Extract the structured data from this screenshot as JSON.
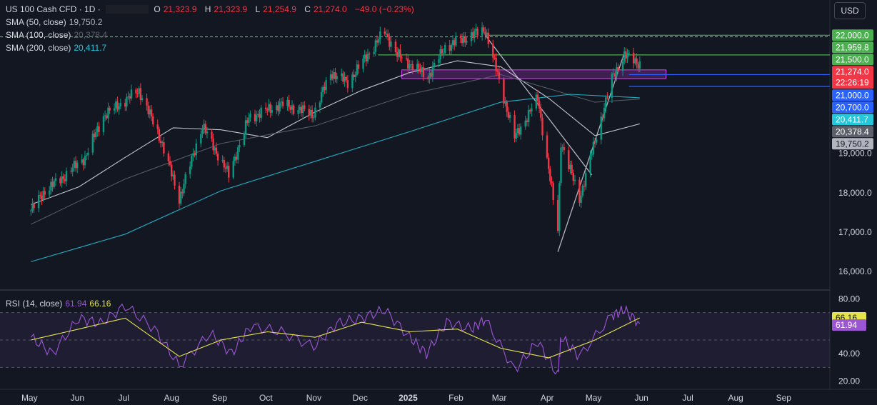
{
  "header": {
    "symbol": "US 100 Cash CFD · 1D ·",
    "ohlc": {
      "o_label": "O",
      "o": "21,323.9",
      "h_label": "H",
      "h": "21,323.9",
      "l_label": "L",
      "l": "21,254.9",
      "c_label": "C",
      "c": "21,274.0",
      "chg": "−49.0 (−0.23%)"
    },
    "currency_button": "USD"
  },
  "indicators": [
    {
      "label": "SMA (50, close)",
      "value": "19,750.2",
      "color": "#ffffff"
    },
    {
      "label": "SMA (100, close)",
      "value": "20,378.4",
      "color": "#5d606b"
    },
    {
      "label": "SMA (200, close)",
      "value": "20,411.7",
      "color": "#26c6da"
    }
  ],
  "rsi_legend": {
    "label": "RSI (14, close)",
    "rsi": "61.94",
    "ma": "66.16"
  },
  "colors": {
    "bg": "#131722",
    "up": "#089981",
    "down": "#f23645",
    "sma50": "#e0e3eb",
    "sma100": "#5d606b",
    "sma200": "#26c6da",
    "rsi": "#9c56d4",
    "rsi_ma": "#e5e34a",
    "grid": "#2a2e39"
  },
  "chart_data": [
    {
      "type": "candlestick",
      "title": "US 100 Cash CFD · 1D",
      "x_labels": [
        "May",
        "Jun",
        "Jul",
        "Aug",
        "Sep",
        "Oct",
        "Nov",
        "Dec",
        "2025",
        "Feb",
        "Mar",
        "Apr",
        "May",
        "Jun",
        "Jul",
        "Aug",
        "Sep"
      ],
      "y_ticks": [
        "16,000.0",
        "17,000.0",
        "18,000.0",
        "19,000.0"
      ],
      "ylim": [
        15550,
        22350
      ],
      "grid": false,
      "path_points": [
        [
          "2024-05-01",
          17550
        ],
        [
          "2024-05-10",
          18050
        ],
        [
          "2024-05-22",
          18400
        ],
        [
          "2024-06-05",
          18900
        ],
        [
          "2024-06-17",
          19950
        ],
        [
          "2024-07-10",
          20600
        ],
        [
          "2024-07-24",
          19350
        ],
        [
          "2024-08-05",
          17850
        ],
        [
          "2024-08-20",
          19700
        ],
        [
          "2024-09-06",
          18450
        ],
        [
          "2024-09-19",
          19900
        ],
        [
          "2024-10-10",
          20250
        ],
        [
          "2024-10-31",
          20000
        ],
        [
          "2024-11-11",
          21050
        ],
        [
          "2024-11-22",
          20800
        ],
        [
          "2024-12-16",
          22100
        ],
        [
          "2024-12-24",
          21500
        ],
        [
          "2025-01-13",
          20950
        ],
        [
          "2025-01-24",
          21700
        ],
        [
          "2025-02-19",
          22150
        ],
        [
          "2025-03-10",
          19400
        ],
        [
          "2025-03-25",
          20400
        ],
        [
          "2025-04-07",
          17050
        ],
        [
          "2025-04-09",
          19300
        ],
        [
          "2025-04-21",
          17850
        ],
        [
          "2025-05-12",
          20900
        ],
        [
          "2025-05-20",
          21500
        ],
        [
          "2025-05-30",
          21274
        ]
      ],
      "moving_averages": [
        {
          "name": "SMA (50, close)",
          "points": [
            [
              "2024-05-01",
              17700
            ],
            [
              "2024-06-01",
              18150
            ],
            [
              "2024-07-01",
              18900
            ],
            [
              "2024-08-01",
              19650
            ],
            [
              "2024-09-01",
              19600
            ],
            [
              "2024-10-01",
              19400
            ],
            [
              "2024-11-01",
              20050
            ],
            [
              "2024-12-01",
              20600
            ],
            [
              "2025-01-01",
              21050
            ],
            [
              "2025-02-01",
              21350
            ],
            [
              "2025-03-01",
              21200
            ],
            [
              "2025-04-01",
              20400
            ],
            [
              "2025-05-01",
              19450
            ],
            [
              "2025-05-30",
              19750.2
            ]
          ]
        },
        {
          "name": "SMA (100, close)",
          "points": [
            [
              "2024-05-01",
              17200
            ],
            [
              "2024-07-01",
              18350
            ],
            [
              "2024-09-01",
              19250
            ],
            [
              "2024-11-01",
              19700
            ],
            [
              "2025-01-01",
              20500
            ],
            [
              "2025-03-01",
              21000
            ],
            [
              "2025-05-01",
              20300
            ],
            [
              "2025-05-30",
              20378.4
            ]
          ]
        },
        {
          "name": "SMA (200, close)",
          "points": [
            [
              "2024-05-01",
              16250
            ],
            [
              "2024-07-01",
              16950
            ],
            [
              "2024-09-01",
              18050
            ],
            [
              "2024-11-01",
              18800
            ],
            [
              "2025-01-01",
              19550
            ],
            [
              "2025-03-01",
              20300
            ],
            [
              "2025-04-15",
              20500
            ],
            [
              "2025-05-30",
              20411.7
            ]
          ]
        }
      ],
      "horizontal_levels": [
        {
          "price": 22000.0,
          "label": "22,000.0",
          "color": "#4caf50"
        },
        {
          "price": 21959.8,
          "label": "21,959.8",
          "color": "#4caf50"
        },
        {
          "price": 21500.0,
          "label": "21,500.0",
          "color": "#4caf50"
        },
        {
          "price": 21000.0,
          "label": "21,000.0",
          "color": "#2962ff"
        },
        {
          "price": 20700.0,
          "label": "20,700.0",
          "color": "#2962ff"
        }
      ],
      "price_labels": [
        {
          "price": 21274.0,
          "label": "21,274.0",
          "sub": "22:26:19",
          "color": "#f23645"
        },
        {
          "price": 20411.7,
          "label": "20,411.7",
          "color": "#26c6da"
        },
        {
          "price": 20378.4,
          "label": "20,378.4",
          "color": "#5d606b"
        },
        {
          "price": 19750.2,
          "label": "19,750.2",
          "color": "#b2b5be"
        }
      ],
      "zones": [
        {
          "from": 20900,
          "to": 21120,
          "color": "#e040fb"
        }
      ],
      "trendlines": [
        {
          "from": [
            "2025-02-19",
            22000
          ],
          "to": [
            "2025-04-29",
            18450
          ]
        },
        {
          "from": [
            "2025-04-07",
            16500
          ],
          "to": [
            "2025-05-20",
            21550
          ]
        }
      ]
    },
    {
      "type": "line",
      "title": "RSI (14, close)",
      "y_ticks": [
        "20.00",
        "40.00",
        "80.00"
      ],
      "ylim": [
        14,
        86
      ],
      "series": [
        {
          "name": "RSI (14, close)",
          "points": [
            [
              "2024-05-01",
              52
            ],
            [
              "2024-05-15",
              40
            ],
            [
              "2024-06-01",
              66
            ],
            [
              "2024-06-15",
              62
            ],
            [
              "2024-07-01",
              75
            ],
            [
              "2024-07-20",
              58
            ],
            [
              "2024-08-05",
              31
            ],
            [
              "2024-08-25",
              55
            ],
            [
              "2024-09-08",
              40
            ],
            [
              "2024-09-20",
              60
            ],
            [
              "2024-10-10",
              56
            ],
            [
              "2024-10-31",
              45
            ],
            [
              "2024-11-15",
              62
            ],
            [
              "2024-12-01",
              66
            ],
            [
              "2024-12-16",
              72
            ],
            [
              "2025-01-01",
              52
            ],
            [
              "2025-01-12",
              40
            ],
            [
              "2025-01-25",
              63
            ],
            [
              "2025-02-10",
              58
            ],
            [
              "2025-02-19",
              65
            ],
            [
              "2025-03-10",
              28
            ],
            [
              "2025-03-25",
              49
            ],
            [
              "2025-04-07",
              24
            ],
            [
              "2025-04-09",
              52
            ],
            [
              "2025-04-21",
              38
            ],
            [
              "2025-05-12",
              68
            ],
            [
              "2025-05-20",
              72
            ],
            [
              "2025-05-30",
              61.94
            ]
          ]
        },
        {
          "name": "66.16",
          "points": [
            [
              "2024-05-01",
              50
            ],
            [
              "2024-06-01",
              58
            ],
            [
              "2024-07-01",
              66
            ],
            [
              "2024-08-05",
              38
            ],
            [
              "2024-09-01",
              50
            ],
            [
              "2024-10-01",
              56
            ],
            [
              "2024-11-01",
              52
            ],
            [
              "2024-12-01",
              63
            ],
            [
              "2025-01-01",
              56
            ],
            [
              "2025-02-01",
              58
            ],
            [
              "2025-03-01",
              44
            ],
            [
              "2025-04-01",
              37
            ],
            [
              "2025-05-01",
              50
            ],
            [
              "2025-05-30",
              66.16
            ]
          ]
        }
      ],
      "levels": [
        70,
        50,
        30
      ]
    }
  ]
}
